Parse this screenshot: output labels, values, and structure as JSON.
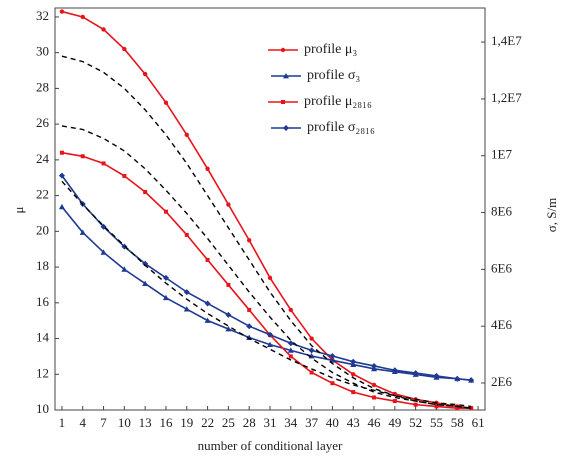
{
  "chart_data": {
    "type": "line",
    "x_label": "number of conditional layer",
    "y_label": "μ",
    "y2_label": "σ, S/m",
    "x": [
      1,
      4,
      7,
      10,
      13,
      16,
      19,
      22,
      25,
      28,
      31,
      34,
      37,
      40,
      43,
      46,
      49,
      52,
      55,
      58,
      60
    ],
    "xlim": [
      0,
      62
    ],
    "xticks": [
      1,
      4,
      7,
      10,
      13,
      16,
      19,
      22,
      25,
      28,
      31,
      34,
      37,
      40,
      43,
      46,
      49,
      52,
      55,
      58,
      61
    ],
    "ylim": [
      10,
      32.5
    ],
    "yticks": [
      10,
      12,
      14,
      16,
      18,
      20,
      22,
      24,
      26,
      28,
      30,
      32
    ],
    "y2lim": [
      1050000,
      15200000
    ],
    "y2ticks": [
      {
        "value": 2000000,
        "label": "2E6"
      },
      {
        "value": 4000000,
        "label": "4E6"
      },
      {
        "value": 6000000,
        "label": "6E6"
      },
      {
        "value": 8000000,
        "label": "8E6"
      },
      {
        "value": 10000000,
        "label": "1E7"
      },
      {
        "value": 12000000,
        "label": "1,2E7"
      },
      {
        "value": 14000000,
        "label": "1,4E7"
      }
    ],
    "grid": false,
    "legend": "top",
    "series": [
      {
        "name": "profile μ₃",
        "color": "#e8141c",
        "marker": "circle",
        "axis": "y",
        "values": [
          32.3,
          32.0,
          31.3,
          30.2,
          28.8,
          27.2,
          25.4,
          23.5,
          21.5,
          19.5,
          17.4,
          15.6,
          14.0,
          12.8,
          12.0,
          11.4,
          10.9,
          10.6,
          10.4,
          10.2,
          10.1
        ]
      },
      {
        "name": "profile σ₃",
        "color": "#1f3a93",
        "marker": "triangle",
        "axis": "y2",
        "values": [
          8200000,
          7300000,
          6600000,
          6000000,
          5500000,
          5000000,
          4600000,
          4200000,
          3900000,
          3600000,
          3350000,
          3150000,
          2950000,
          2800000,
          2650000,
          2500000,
          2400000,
          2300000,
          2200000,
          2150000,
          2100000
        ]
      },
      {
        "name": "profile μ₂₈₁₆",
        "color": "#e8141c",
        "marker": "square",
        "axis": "y",
        "values": [
          24.4,
          24.2,
          23.8,
          23.1,
          22.2,
          21.1,
          19.8,
          18.4,
          17.0,
          15.6,
          14.2,
          13.0,
          12.1,
          11.5,
          11.0,
          10.7,
          10.5,
          10.3,
          10.2,
          10.1,
          10.1
        ]
      },
      {
        "name": "profile σ₂₈₁₆",
        "color": "#1f3a93",
        "marker": "diamond",
        "axis": "y2",
        "values": [
          9300000,
          8300000,
          7500000,
          6800000,
          6200000,
          5700000,
          5200000,
          4800000,
          4400000,
          4000000,
          3700000,
          3400000,
          3150000,
          2950000,
          2750000,
          2600000,
          2450000,
          2350000,
          2250000,
          2150000,
          2100000
        ]
      },
      {
        "color": "#000000",
        "dash": true,
        "axis": "y",
        "values": [
          29.8,
          29.5,
          28.9,
          28.0,
          26.8,
          25.4,
          23.8,
          22.0,
          20.2,
          18.4,
          16.6,
          15.0,
          13.6,
          12.6,
          11.8,
          11.2,
          10.8,
          10.5,
          10.3,
          10.2,
          10.1
        ]
      },
      {
        "color": "#000000",
        "dash": true,
        "axis": "y",
        "values": [
          25.9,
          25.7,
          25.2,
          24.5,
          23.5,
          22.3,
          21.0,
          19.6,
          18.1,
          16.6,
          15.2,
          13.9,
          12.9,
          12.1,
          11.5,
          11.0,
          10.7,
          10.5,
          10.3,
          10.2,
          10.1
        ]
      },
      {
        "color": "#000000",
        "dash": true,
        "axis": "y",
        "values": [
          22.8,
          21.5,
          20.3,
          19.2,
          18.1,
          17.1,
          16.2,
          15.4,
          14.7,
          14.0,
          13.4,
          12.8,
          12.3,
          11.8,
          11.4,
          11.1,
          10.8,
          10.6,
          10.4,
          10.3,
          10.2
        ]
      }
    ]
  }
}
